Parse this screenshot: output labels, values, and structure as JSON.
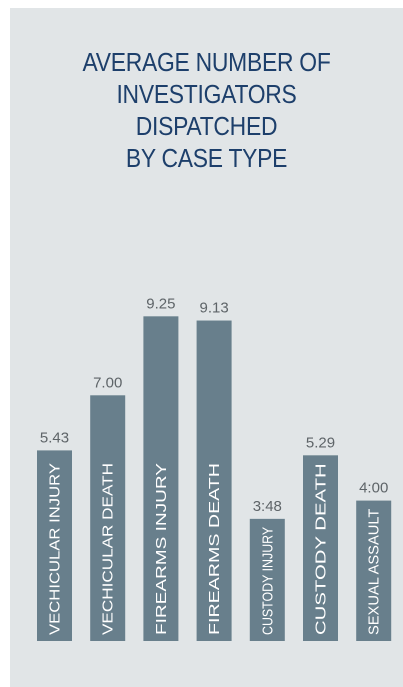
{
  "chart_data": {
    "type": "bar",
    "title_lines": [
      "AVERAGE NUMBER OF",
      "INVESTIGATORS",
      "DISPATCHED",
      "BY CASE TYPE"
    ],
    "categories": [
      "VECHICULAR INJURY",
      "VECHICULAR DEATH",
      "FIREARMS INJURY",
      "FIREARMS DEATH",
      "CUSTODY INJURY",
      "CUSTODY DEATH",
      "SEXUAL ASSAULT"
    ],
    "value_labels": [
      "5.43",
      "7.00",
      "9.25",
      "9.13",
      "3:48",
      "5.29",
      "4:00"
    ],
    "values": [
      5.43,
      7.0,
      9.25,
      9.13,
      3.48,
      5.29,
      4.0
    ],
    "ylim": [
      0,
      12.4
    ],
    "grid": false,
    "bar_color": "#687f8c"
  }
}
